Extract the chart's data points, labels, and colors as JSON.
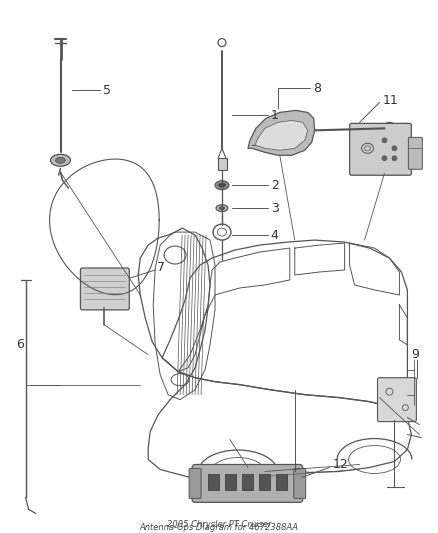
{
  "title": "2005 Chrysler PT Cruiser\nAntenna-Gps Diagram for 4672388AA",
  "bg_color": "#ffffff",
  "line_color": "#555555",
  "fig_width": 4.38,
  "fig_height": 5.33,
  "dpi": 100
}
